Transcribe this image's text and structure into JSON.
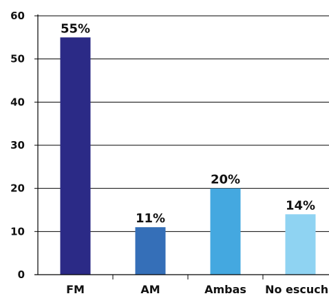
{
  "chart_data": {
    "type": "bar",
    "title": "",
    "xlabel": "",
    "ylabel": "",
    "categories": [
      "FM",
      "AM",
      "Ambas",
      "No escucha"
    ],
    "values": [
      55,
      11,
      20,
      14
    ],
    "data_labels": [
      "55%",
      "11%",
      "20%",
      "14%"
    ],
    "bar_colors": [
      "#2b2a86",
      "#356fb8",
      "#44a8e0",
      "#8fd3f2"
    ],
    "ylim": [
      0,
      60
    ],
    "yticks": [
      0,
      10,
      20,
      30,
      40,
      50,
      60
    ],
    "grid": true,
    "legend": "none"
  }
}
